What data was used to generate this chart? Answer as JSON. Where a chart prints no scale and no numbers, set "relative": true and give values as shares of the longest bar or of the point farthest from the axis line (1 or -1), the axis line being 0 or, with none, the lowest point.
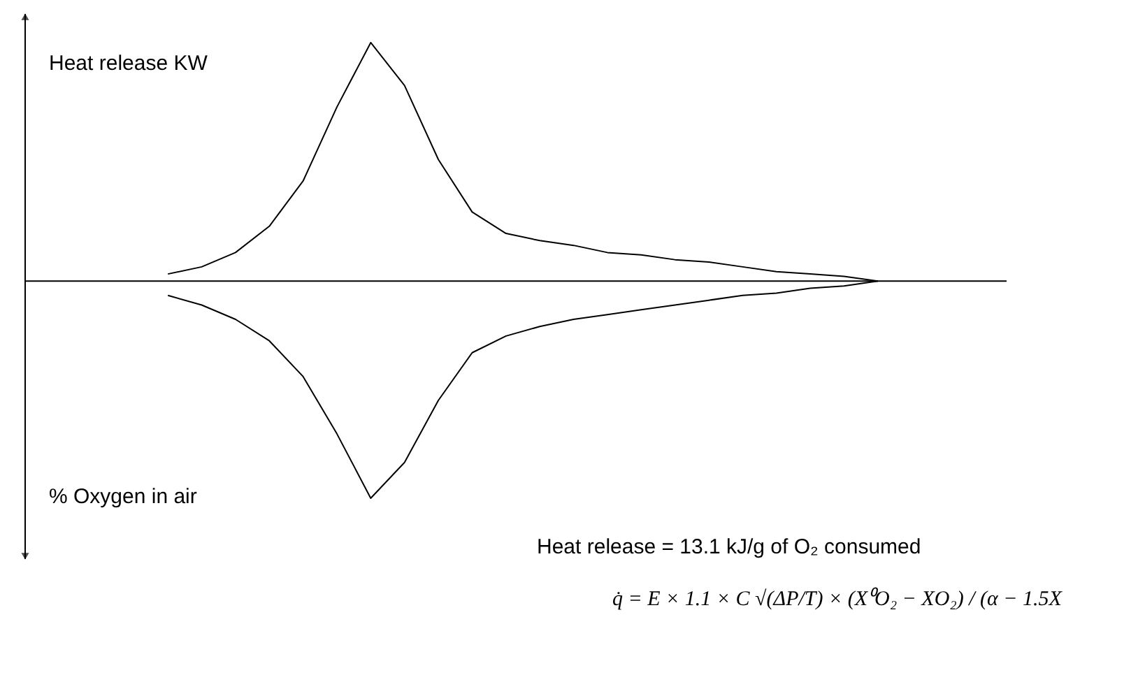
{
  "chart_data": {
    "type": "line",
    "relative": true,
    "marker": "none",
    "line_style": "solid",
    "categories": [
      null,
      null,
      null,
      null,
      null,
      null,
      null,
      null,
      null,
      null,
      null,
      null,
      null,
      null,
      null,
      null,
      null,
      null,
      null,
      null,
      null,
      null
    ],
    "series": [
      {
        "color": "#000000",
        "values": [
          0.03,
          0.06,
          0.12,
          0.23,
          0.42,
          0.73,
          1.0,
          0.82,
          0.51,
          0.29,
          0.2,
          0.17,
          0.15,
          0.12,
          0.11,
          0.09,
          0.08,
          0.06,
          0.04,
          0.03,
          0.02,
          0.0
        ]
      },
      {
        "color": "#000000",
        "values": [
          -0.06,
          -0.1,
          -0.16,
          -0.25,
          -0.4,
          -0.64,
          -0.91,
          -0.76,
          -0.5,
          -0.3,
          -0.23,
          -0.19,
          -0.16,
          -0.14,
          -0.12,
          -0.1,
          -0.08,
          -0.06,
          -0.05,
          -0.03,
          -0.02,
          0.0
        ]
      }
    ],
    "annotations": [
      "Heat release KW",
      "% Oxygen in air",
      "Heat release = 13.1 kJ/g of O₂ consumed",
      "q̇ = E × 1.1 × C √(ΔP/T) × (X⁰O₂ − XO₂) / (α − 1.5X"
    ]
  }
}
